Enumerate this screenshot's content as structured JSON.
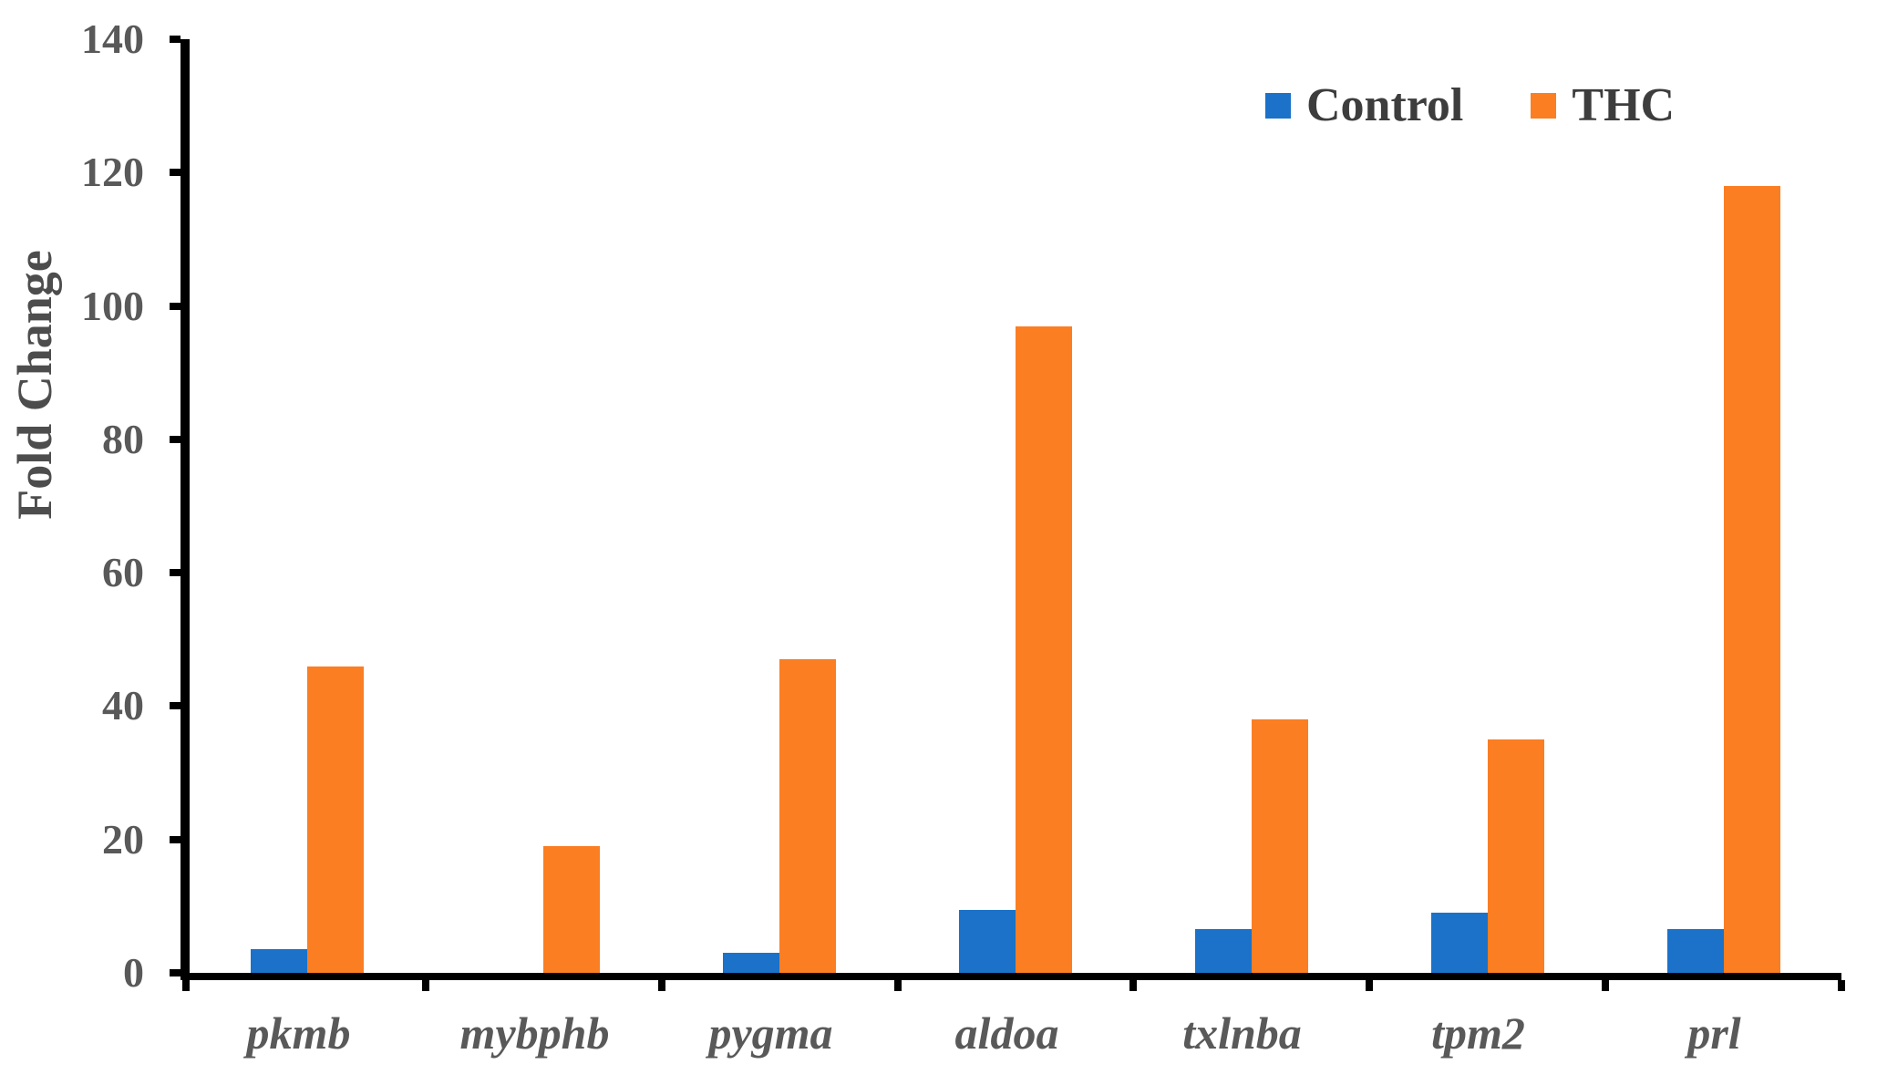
{
  "chart_data": {
    "type": "bar",
    "title": "",
    "categories": [
      "pkmb",
      "mybphb",
      "pygma",
      "aldoa",
      "txlnba",
      "tpm2",
      "prl"
    ],
    "series": [
      {
        "name": "Control",
        "color": "#1B72C8",
        "values": [
          3.5,
          0,
          3,
          9.5,
          6.5,
          9,
          6.5
        ]
      },
      {
        "name": "THC",
        "color": "#FB7E23",
        "values": [
          46,
          19,
          47,
          97,
          38,
          35,
          118
        ]
      }
    ],
    "xlabel": "",
    "ylabel": "Fold Change",
    "ylim": [
      0,
      140
    ],
    "yticks": [
      0,
      20,
      40,
      60,
      80,
      100,
      120,
      140
    ],
    "grid": false,
    "legend_position": "top-right",
    "axis_color": "#000000",
    "tick_label_color": "#595959",
    "category_label_style": "italic"
  }
}
